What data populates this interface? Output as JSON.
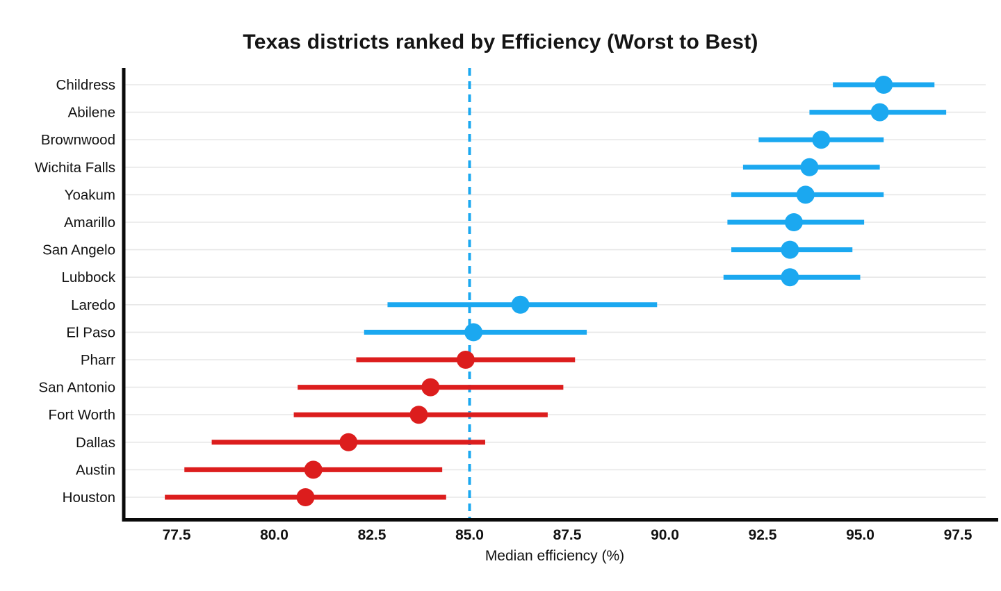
{
  "page": {
    "background": "#ffffff"
  },
  "chart_data": {
    "type": "scatter",
    "subtype": "horizontal dot plot with confidence-interval error bars",
    "title": "Texas districts ranked by Efficiency (Worst to Best)",
    "xlabel": "Median efficiency (%)",
    "ylabel": "",
    "x_ticks": [
      77.5,
      80.0,
      82.5,
      85.0,
      87.5,
      90.0,
      92.5,
      95.0,
      97.5
    ],
    "xlim": [
      76.1,
      98.3
    ],
    "grid": "horizontal",
    "legend": "none",
    "threshold_line": {
      "value": 85.0,
      "style": "dashed",
      "color": "#1ba8f0"
    },
    "colors": {
      "above": "#1ba8f0",
      "below": "#dc1d1d",
      "grid": "#e7e7e7",
      "axis": "#0a0a0a",
      "text": "#111111"
    },
    "order_note": "rows ranked best (top) to worst (bottom)",
    "series": [
      {
        "label": "Childress",
        "median": 95.6,
        "ci_low": 94.3,
        "ci_high": 96.9,
        "color_group": "above"
      },
      {
        "label": "Abilene",
        "median": 95.5,
        "ci_low": 93.7,
        "ci_high": 97.2,
        "color_group": "above"
      },
      {
        "label": "Brownwood",
        "median": 94.0,
        "ci_low": 92.4,
        "ci_high": 95.6,
        "color_group": "above"
      },
      {
        "label": "Wichita Falls",
        "median": 93.7,
        "ci_low": 92.0,
        "ci_high": 95.5,
        "color_group": "above"
      },
      {
        "label": "Yoakum",
        "median": 93.6,
        "ci_low": 91.7,
        "ci_high": 95.6,
        "color_group": "above"
      },
      {
        "label": "Amarillo",
        "median": 93.3,
        "ci_low": 91.6,
        "ci_high": 95.1,
        "color_group": "above"
      },
      {
        "label": "San Angelo",
        "median": 93.2,
        "ci_low": 91.7,
        "ci_high": 94.8,
        "color_group": "above"
      },
      {
        "label": "Lubbock",
        "median": 93.2,
        "ci_low": 91.5,
        "ci_high": 95.0,
        "color_group": "above"
      },
      {
        "label": "Laredo",
        "median": 86.3,
        "ci_low": 82.9,
        "ci_high": 89.8,
        "color_group": "above"
      },
      {
        "label": "El Paso",
        "median": 85.1,
        "ci_low": 82.3,
        "ci_high": 88.0,
        "color_group": "above"
      },
      {
        "label": "Pharr",
        "median": 84.9,
        "ci_low": 82.1,
        "ci_high": 87.7,
        "color_group": "below"
      },
      {
        "label": "San Antonio",
        "median": 84.0,
        "ci_low": 80.6,
        "ci_high": 87.4,
        "color_group": "below"
      },
      {
        "label": "Fort Worth",
        "median": 83.7,
        "ci_low": 80.5,
        "ci_high": 87.0,
        "color_group": "below"
      },
      {
        "label": "Dallas",
        "median": 81.9,
        "ci_low": 78.4,
        "ci_high": 85.4,
        "color_group": "below"
      },
      {
        "label": "Austin",
        "median": 81.0,
        "ci_low": 77.7,
        "ci_high": 84.3,
        "color_group": "below"
      },
      {
        "label": "Houston",
        "median": 80.8,
        "ci_low": 77.2,
        "ci_high": 84.4,
        "color_group": "below"
      }
    ]
  }
}
